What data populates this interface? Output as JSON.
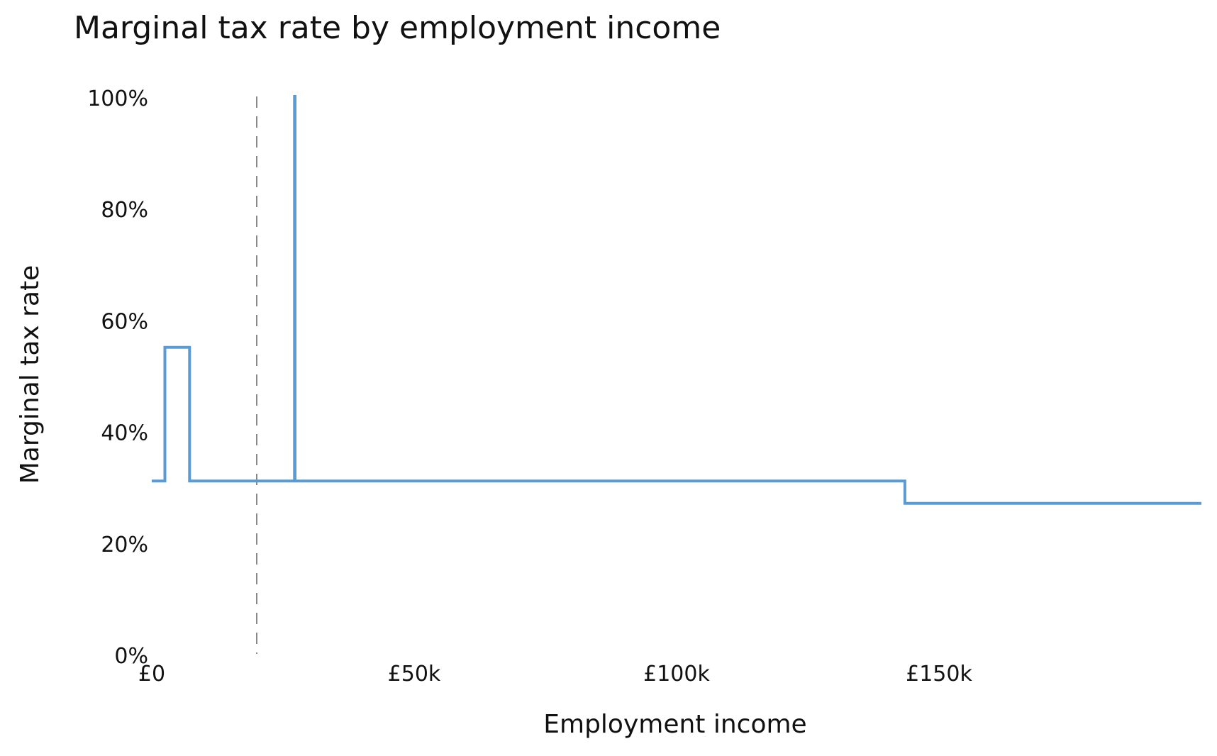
{
  "chart_data": {
    "type": "line",
    "title": "Marginal tax rate by employment income",
    "xlabel": "Employment income",
    "ylabel": "Marginal tax rate",
    "xlim": [
      0,
      200000
    ],
    "ylim": [
      0,
      1
    ],
    "x_ticks": [
      0,
      50000,
      100000,
      150000
    ],
    "x_tick_labels": [
      "£0",
      "£50k",
      "£100k",
      "£150k"
    ],
    "y_ticks": [
      0,
      0.2,
      0.4,
      0.6,
      0.8,
      1.0
    ],
    "y_tick_labels": [
      "0%",
      "20%",
      "40%",
      "60%",
      "80%",
      "100%"
    ],
    "grid": false,
    "legend": "none",
    "line_color": "#5b9bd5",
    "reference_line": {
      "x": 20000,
      "style": "dashed",
      "color": "#888888"
    },
    "series": [
      {
        "points": [
          [
            0,
            0.31
          ],
          [
            2500,
            0.31
          ],
          [
            2500,
            0.55
          ],
          [
            7200,
            0.55
          ],
          [
            7200,
            0.31
          ],
          [
            27200,
            0.31
          ],
          [
            27200,
            1.0
          ],
          [
            27300,
            1.0
          ],
          [
            27300,
            0.31
          ],
          [
            143500,
            0.31
          ],
          [
            143500,
            0.27
          ],
          [
            200000,
            0.27
          ]
        ]
      }
    ]
  }
}
